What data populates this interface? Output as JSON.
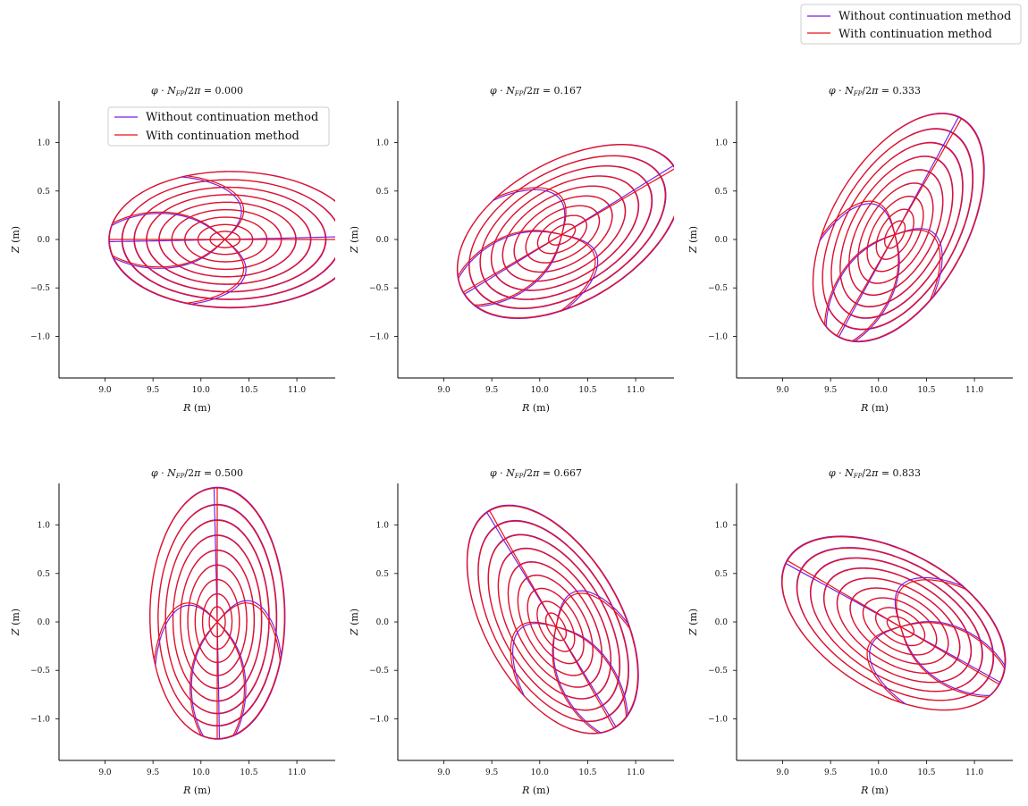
{
  "figure": {
    "legend": [
      {
        "label": "Without continuation method",
        "color": "#7b1fe0"
      },
      {
        "label": "With continuation method",
        "color": "#ee1111"
      }
    ],
    "legend_placement": "top-right"
  },
  "chart_data": [
    {
      "type": "line",
      "title": "φ · N_FP / 2π = 0.000",
      "xlabel": "R (m)",
      "ylabel": "Z (m)",
      "xlim": [
        8.52,
        11.4
      ],
      "ylim": [
        -1.43,
        1.43
      ],
      "xticks": [
        "9.0",
        "9.5",
        "10.0",
        "10.5",
        "11.0"
      ],
      "yticks": [
        "1.0",
        "0.5",
        "0.0",
        "−0.5",
        "−1.0"
      ],
      "phase": 0.0,
      "axis_R": 10.25,
      "axis_Z": 0.0,
      "a": 1.3,
      "b": 0.7,
      "legend_in_panel": true
    },
    {
      "type": "line",
      "title": "φ · N_FP / 2π = 0.167",
      "xlabel": "R (m)",
      "ylabel": "Z (m)",
      "xlim": [
        8.52,
        11.4
      ],
      "ylim": [
        -1.43,
        1.43
      ],
      "xticks": [
        "9.0",
        "9.5",
        "10.0",
        "10.5",
        "11.0"
      ],
      "yticks": [
        "1.0",
        "0.5",
        "0.0",
        "−0.5",
        "−1.0"
      ],
      "phase": 0.167,
      "axis_R": 10.23,
      "axis_Z": 0.05,
      "a": 1.28,
      "b": 0.72,
      "legend_in_panel": false
    },
    {
      "type": "line",
      "title": "φ · N_FP / 2π = 0.333",
      "xlabel": "R (m)",
      "ylabel": "Z (m)",
      "xlim": [
        8.52,
        11.4
      ],
      "ylim": [
        -1.43,
        1.43
      ],
      "xticks": [
        "9.0",
        "9.5",
        "10.0",
        "10.5",
        "11.0"
      ],
      "yticks": [
        "1.0",
        "0.5",
        "0.0",
        "−0.5",
        "−1.0"
      ],
      "phase": 0.333,
      "axis_R": 10.17,
      "axis_Z": 0.05,
      "a": 1.3,
      "b": 0.7,
      "legend_in_panel": false
    },
    {
      "type": "line",
      "title": "φ · N_FP / 2π = 0.500",
      "xlabel": "R (m)",
      "ylabel": "Z (m)",
      "xlim": [
        8.52,
        11.4
      ],
      "ylim": [
        -1.43,
        1.43
      ],
      "xticks": [
        "9.0",
        "9.5",
        "10.0",
        "10.5",
        "11.0"
      ],
      "yticks": [
        "1.0",
        "0.5",
        "0.0",
        "−0.5",
        "−1.0"
      ],
      "phase": 0.5,
      "axis_R": 10.17,
      "axis_Z": 0.0,
      "a": 1.3,
      "b": 0.7,
      "legend_in_panel": false
    },
    {
      "type": "line",
      "title": "φ · N_FP / 2π = 0.667",
      "xlabel": "R (m)",
      "ylabel": "Z (m)",
      "xlim": [
        8.52,
        11.4
      ],
      "ylim": [
        -1.43,
        1.43
      ],
      "xticks": [
        "9.0",
        "9.5",
        "10.0",
        "10.5",
        "11.0"
      ],
      "yticks": [
        "1.0",
        "0.5",
        "0.0",
        "−0.5",
        "−1.0"
      ],
      "phase": 0.667,
      "axis_R": 10.17,
      "axis_Z": -0.05,
      "a": 1.3,
      "b": 0.7,
      "legend_in_panel": false
    },
    {
      "type": "line",
      "title": "φ · N_FP / 2π = 0.833",
      "xlabel": "R (m)",
      "ylabel": "Z (m)",
      "xlim": [
        8.52,
        11.4
      ],
      "ylim": [
        -1.43,
        1.43
      ],
      "xticks": [
        "9.0",
        "9.5",
        "10.0",
        "10.5",
        "11.0"
      ],
      "yticks": [
        "1.0",
        "0.5",
        "0.0",
        "−0.5",
        "−1.0"
      ],
      "phase": 0.833,
      "axis_R": 10.23,
      "axis_Z": -0.05,
      "a": 1.28,
      "b": 0.72,
      "legend_in_panel": false
    }
  ]
}
